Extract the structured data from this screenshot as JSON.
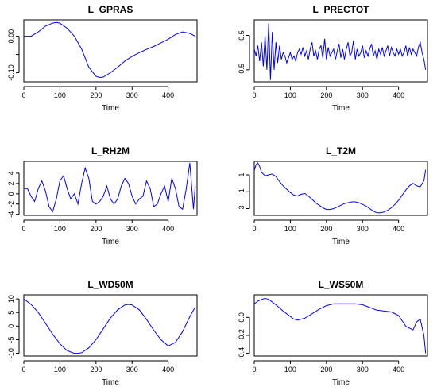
{
  "chart_data": [
    {
      "type": "line",
      "title": "L_GPRAS",
      "xlabel": "Time",
      "ylabel": "",
      "xlim": [
        0,
        480
      ],
      "ylim": [
        -0.125,
        0.045
      ],
      "xticks": [
        0,
        100,
        200,
        300,
        400
      ],
      "yticks": [
        0.0,
        -0.05,
        -0.1
      ],
      "ytick_labels": [
        "0.00",
        "",
        "-0.10"
      ],
      "series": [
        {
          "x": [
            0,
            20,
            40,
            60,
            80,
            90,
            100,
            120,
            140,
            160,
            180,
            200,
            210,
            220,
            240,
            260,
            280,
            300,
            320,
            340,
            360,
            380,
            400,
            420,
            440,
            460,
            475
          ],
          "values": [
            0.0,
            0.0,
            0.012,
            0.028,
            0.036,
            0.038,
            0.036,
            0.022,
            0.0,
            -0.035,
            -0.085,
            -0.11,
            -0.113,
            -0.112,
            -0.1,
            -0.085,
            -0.068,
            -0.055,
            -0.045,
            -0.036,
            -0.028,
            -0.018,
            -0.008,
            0.005,
            0.012,
            0.008,
            0.0
          ]
        }
      ]
    },
    {
      "type": "line",
      "title": "L_PRECTOT",
      "xlabel": "Time",
      "ylabel": "",
      "xlim": [
        0,
        480
      ],
      "ylim": [
        -0.85,
        0.95
      ],
      "xticks": [
        0,
        100,
        200,
        300,
        400
      ],
      "yticks": [
        0.5,
        -0.5
      ],
      "ytick_labels": [
        "0.5",
        "-0.5"
      ],
      "series": [
        {
          "x": [
            0,
            5,
            10,
            15,
            20,
            25,
            30,
            35,
            40,
            45,
            50,
            55,
            60,
            65,
            70,
            75,
            80,
            85,
            90,
            95,
            100,
            105,
            110,
            115,
            120,
            125,
            130,
            135,
            140,
            145,
            150,
            155,
            160,
            165,
            170,
            175,
            180,
            185,
            190,
            195,
            200,
            205,
            210,
            215,
            220,
            225,
            230,
            235,
            240,
            245,
            250,
            255,
            260,
            265,
            270,
            275,
            280,
            285,
            290,
            295,
            300,
            305,
            310,
            315,
            320,
            325,
            330,
            335,
            340,
            345,
            350,
            355,
            360,
            365,
            370,
            375,
            380,
            385,
            390,
            395,
            400,
            405,
            410,
            415,
            420,
            425,
            430,
            435,
            440,
            445,
            450,
            455,
            460,
            465,
            470,
            475
          ],
          "values": [
            0.1,
            -0.1,
            0.2,
            -0.25,
            0.3,
            -0.4,
            0.5,
            -0.5,
            0.85,
            -0.8,
            0.6,
            -0.5,
            0.3,
            -0.3,
            0.2,
            -0.2,
            0.0,
            -0.1,
            -0.3,
            -0.15,
            0.0,
            -0.2,
            -0.1,
            -0.25,
            0.0,
            0.1,
            -0.05,
            0.15,
            -0.1,
            0.05,
            -0.2,
            0.1,
            0.3,
            -0.1,
            0.05,
            -0.2,
            0.1,
            0.2,
            -0.15,
            0.4,
            -0.2,
            0.15,
            -0.1,
            0.0,
            0.1,
            -0.2,
            0.05,
            0.25,
            -0.15,
            0.1,
            -0.2,
            0.1,
            0.3,
            -0.1,
            0.0,
            0.35,
            -0.2,
            0.1,
            -0.1,
            0.0,
            0.2,
            -0.15,
            0.05,
            -0.1,
            0.1,
            0.25,
            -0.1,
            0.05,
            -0.2,
            0.1,
            -0.05,
            0.15,
            -0.1,
            0.05,
            0.2,
            -0.1,
            0.15,
            0.0,
            -0.1,
            0.1,
            -0.05,
            0.1,
            -0.1,
            0.0,
            0.2,
            -0.1,
            0.15,
            -0.05,
            0.1,
            0.0,
            -0.1,
            0.15,
            0.3,
            0.0,
            -0.2,
            -0.5
          ]
        }
      ]
    },
    {
      "type": "line",
      "title": "L_RH2M",
      "xlabel": "Time",
      "ylabel": "",
      "xlim": [
        0,
        480
      ],
      "ylim": [
        -4.2,
        6.3
      ],
      "xticks": [
        0,
        100,
        200,
        300,
        400
      ],
      "yticks": [
        4,
        2,
        0,
        -2,
        -4
      ],
      "ytick_labels": [
        "4",
        "2",
        "0",
        "-2",
        "-4"
      ],
      "series": [
        {
          "x": [
            0,
            10,
            20,
            30,
            40,
            50,
            60,
            70,
            80,
            90,
            100,
            110,
            120,
            130,
            140,
            150,
            160,
            170,
            180,
            190,
            200,
            210,
            220,
            230,
            240,
            250,
            260,
            270,
            280,
            290,
            300,
            310,
            320,
            330,
            340,
            350,
            360,
            370,
            380,
            390,
            400,
            410,
            420,
            430,
            440,
            450,
            460,
            470,
            475
          ],
          "values": [
            1.0,
            1.0,
            -0.5,
            -1.5,
            1.0,
            2.5,
            0.5,
            -2.5,
            -3.5,
            -1.0,
            2.5,
            3.5,
            1.0,
            -1.0,
            0.0,
            -2.0,
            2.0,
            5.0,
            3.0,
            -1.5,
            -2.0,
            -1.5,
            -0.5,
            1.5,
            -1.0,
            -2.0,
            -1.0,
            1.5,
            3.0,
            2.0,
            -0.5,
            -2.0,
            -1.0,
            -0.5,
            2.5,
            1.0,
            -2.5,
            -2.0,
            0.0,
            1.5,
            -1.5,
            3.0,
            1.0,
            -2.5,
            -3.0,
            1.0,
            6.0,
            -3.0,
            1.5
          ]
        }
      ]
    },
    {
      "type": "line",
      "title": "L_T2M",
      "xlabel": "Time",
      "ylabel": "",
      "xlim": [
        0,
        480
      ],
      "ylim": [
        -3.8,
        2.6
      ],
      "xticks": [
        0,
        100,
        200,
        300,
        400
      ],
      "yticks": [
        1,
        -1,
        -3
      ],
      "ytick_labels": [
        "1",
        "-1",
        "-3"
      ],
      "series": [
        {
          "x": [
            0,
            5,
            10,
            15,
            20,
            30,
            40,
            50,
            60,
            70,
            80,
            90,
            100,
            110,
            120,
            130,
            140,
            150,
            160,
            170,
            180,
            190,
            200,
            210,
            220,
            230,
            240,
            250,
            260,
            270,
            280,
            290,
            300,
            310,
            320,
            330,
            340,
            350,
            360,
            370,
            380,
            390,
            400,
            410,
            420,
            430,
            440,
            450,
            460,
            470,
            475
          ],
          "values": [
            1.5,
            2.2,
            2.4,
            2.0,
            1.3,
            0.9,
            1.0,
            1.1,
            0.8,
            0.2,
            -0.3,
            -0.7,
            -1.1,
            -1.4,
            -1.5,
            -1.3,
            -1.2,
            -1.5,
            -1.9,
            -2.3,
            -2.6,
            -2.9,
            -3.1,
            -3.1,
            -3.0,
            -2.8,
            -2.6,
            -2.4,
            -2.3,
            -2.2,
            -2.2,
            -2.3,
            -2.5,
            -2.7,
            -3.0,
            -3.3,
            -3.5,
            -3.5,
            -3.4,
            -3.2,
            -2.9,
            -2.5,
            -2.0,
            -1.4,
            -0.8,
            -0.3,
            0.0,
            -0.3,
            -0.4,
            0.3,
            1.6
          ]
        }
      ]
    },
    {
      "type": "line",
      "title": "L_WD50M",
      "xlabel": "Time",
      "ylabel": "",
      "xlim": [
        0,
        480
      ],
      "ylim": [
        -11,
        11.5
      ],
      "xticks": [
        0,
        100,
        200,
        300,
        400
      ],
      "yticks": [
        10,
        5,
        0,
        -5,
        -10
      ],
      "ytick_labels": [
        "10",
        "5",
        "0",
        "-5",
        "-10"
      ],
      "series": [
        {
          "x": [
            0,
            20,
            40,
            60,
            80,
            100,
            120,
            140,
            150,
            160,
            180,
            200,
            220,
            240,
            260,
            280,
            290,
            300,
            320,
            340,
            360,
            380,
            400,
            420,
            440,
            460,
            475
          ],
          "values": [
            10.0,
            8.0,
            5.0,
            1.0,
            -3.0,
            -6.5,
            -9.0,
            -10.0,
            -10.0,
            -9.8,
            -8.0,
            -5.0,
            -1.0,
            3.0,
            6.0,
            7.8,
            8.0,
            7.8,
            6.0,
            2.5,
            -1.5,
            -5.0,
            -7.3,
            -6.0,
            -2.0,
            3.5,
            7.0
          ]
        }
      ]
    },
    {
      "type": "line",
      "title": "L_WS50M",
      "xlabel": "Time",
      "ylabel": "",
      "xlim": [
        0,
        480
      ],
      "ylim": [
        -0.43,
        0.25
      ],
      "xticks": [
        0,
        100,
        200,
        300,
        400
      ],
      "yticks": [
        0.0,
        -0.2,
        -0.4
      ],
      "ytick_labels": [
        "0.0",
        "-0.2",
        "-0.4"
      ],
      "series": [
        {
          "x": [
            0,
            10,
            20,
            30,
            40,
            60,
            80,
            100,
            110,
            120,
            140,
            160,
            180,
            200,
            220,
            240,
            260,
            280,
            300,
            320,
            340,
            360,
            380,
            400,
            420,
            440,
            450,
            460,
            470,
            475
          ],
          "values": [
            0.15,
            0.18,
            0.2,
            0.21,
            0.2,
            0.14,
            0.07,
            0.01,
            -0.02,
            -0.03,
            -0.01,
            0.04,
            0.09,
            0.13,
            0.15,
            0.15,
            0.15,
            0.15,
            0.14,
            0.11,
            0.08,
            0.07,
            0.06,
            0.02,
            -0.1,
            -0.14,
            -0.05,
            -0.02,
            -0.2,
            -0.4
          ]
        }
      ]
    }
  ]
}
